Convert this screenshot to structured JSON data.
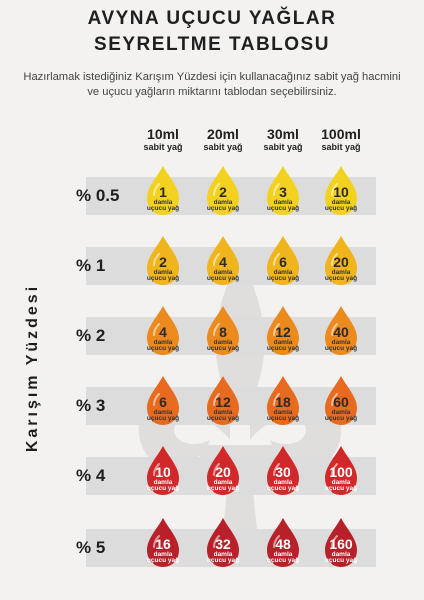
{
  "title_line1": "AVYNA UÇUCU YAĞLAR",
  "title_line2": "SEYRELTME TABLOSU",
  "subtitle": "Hazırlamak istediğiniz Karışım Yüzdesi için kullanacağınız sabit yağ hacmini ve uçucu yağların miktarını tablodan seçebilirsiniz.",
  "axis_label": "Karışım Yüzdesi",
  "drop_label_1": "damla",
  "drop_label_2": "uçucu yağ",
  "columns": [
    {
      "volume": "10ml",
      "sub": "sabit yağ"
    },
    {
      "volume": "20ml",
      "sub": "sabit yağ"
    },
    {
      "volume": "30ml",
      "sub": "sabit yağ"
    },
    {
      "volume": "100ml",
      "sub": "sabit yağ"
    }
  ],
  "rows": [
    {
      "label": "% 0.5",
      "values": [
        "1",
        "2",
        "3",
        "10"
      ],
      "color": "#f2d21f"
    },
    {
      "label": "% 1",
      "values": [
        "2",
        "4",
        "6",
        "20"
      ],
      "color": "#f0b41c"
    },
    {
      "label": "% 2",
      "values": [
        "4",
        "8",
        "12",
        "40"
      ],
      "color": "#ec8a1d"
    },
    {
      "label": "% 3",
      "values": [
        "6",
        "12",
        "18",
        "60"
      ],
      "color": "#e86a1f"
    },
    {
      "label": "% 4",
      "values": [
        "10",
        "20",
        "30",
        "100"
      ],
      "color": "#d1282a"
    },
    {
      "label": "% 5",
      "values": [
        "16",
        "32",
        "48",
        "160"
      ],
      "color": "#b8202a"
    }
  ]
}
